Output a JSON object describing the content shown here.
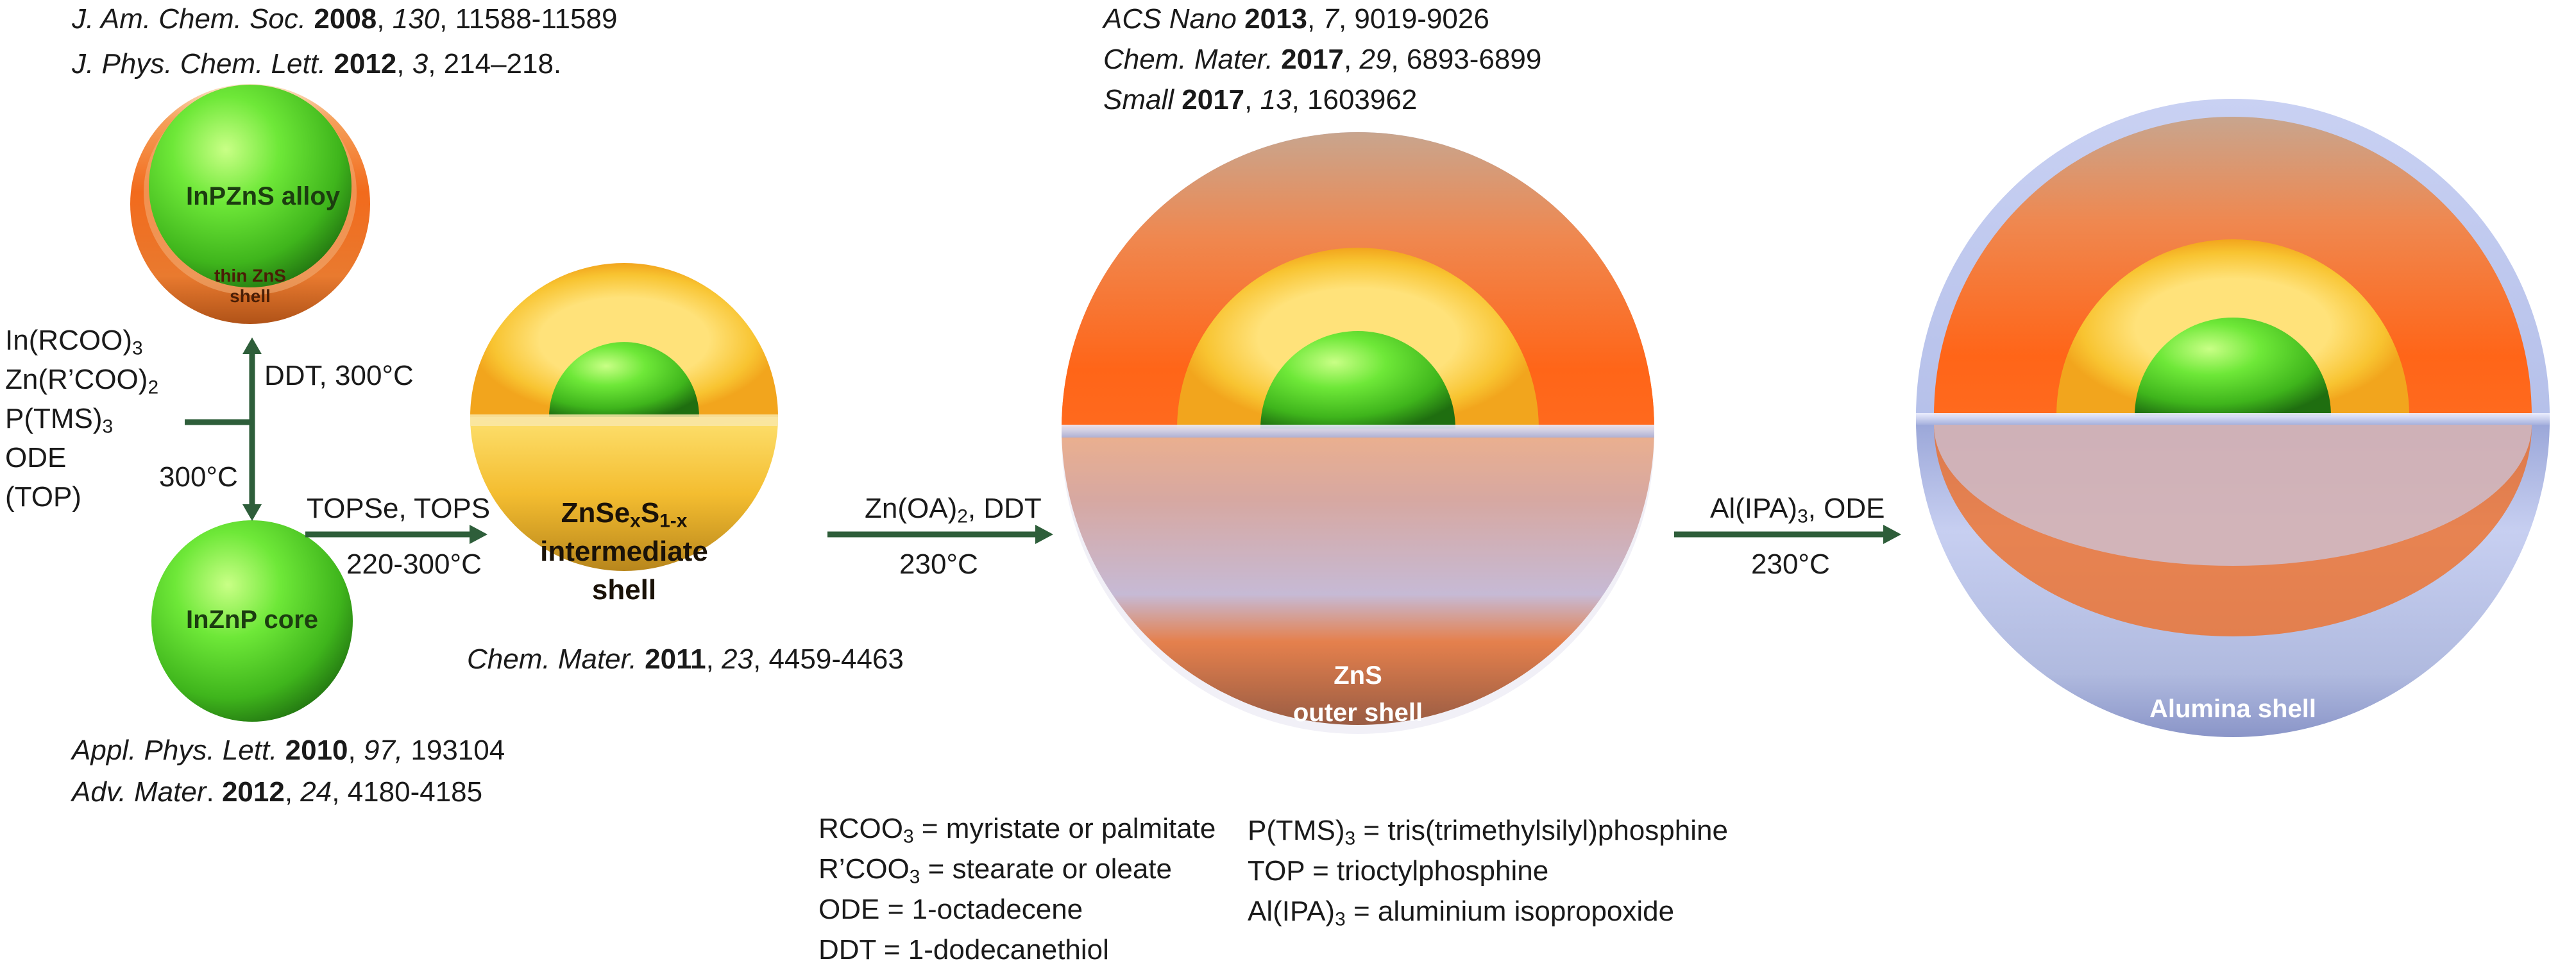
{
  "references": {
    "top_left": [
      {
        "journal": "J. Am. Chem. Soc.",
        "year": "2008",
        "volume": "130",
        "pages": "11588-11589"
      },
      {
        "journal": "J. Phys. Chem. Lett.",
        "year": "2012",
        "volume": "3",
        "pages": "214–218."
      }
    ],
    "bottom_left": [
      {
        "journal": "Appl. Phys. Lett.",
        "year": "2010",
        "volume": "97,",
        "pages": "193104"
      },
      {
        "journal": "Adv. Mater",
        "year": "2012",
        "volume": "24",
        "pages": "4180-4185"
      }
    ],
    "middle": {
      "journal": "Chem. Mater.",
      "year": "2011",
      "volume": "23",
      "pages": "4459-4463"
    },
    "top_right": [
      {
        "journal": "ACS Nano",
        "year": "2013",
        "volume": "7",
        "pages": "9019-9026"
      },
      {
        "journal": "Chem. Mater.",
        "year": "2017",
        "volume": "29",
        "pages": "6893-6899"
      },
      {
        "journal": "Small",
        "year": "2017",
        "volume": "13",
        "pages": "1603962"
      }
    ]
  },
  "particles": {
    "alloy": {
      "label": "InPZnS alloy",
      "shell_line1": "thin ZnS",
      "shell_line2": "shell"
    },
    "core": {
      "label": "InZnP core"
    },
    "intermediate": {
      "main": "ZnSe",
      "sub_x": "x",
      "mid": "S",
      "sub_1x": "1-x",
      "line2": "intermediate",
      "line3": "shell"
    },
    "outer": {
      "line1": "ZnS",
      "line2": "outer shell"
    },
    "alumina": {
      "label": "Alumina shell"
    }
  },
  "precursors": [
    {
      "base": "In(RCOO)",
      "sub": "3"
    },
    {
      "base": "Zn(R’COO)",
      "sub": "2"
    },
    {
      "base": "P(TMS)",
      "sub": "3"
    },
    {
      "base": "ODE",
      "sub": ""
    },
    {
      "base": "(TOP)",
      "sub": ""
    }
  ],
  "steps": {
    "up_label": "DDT, 300°C",
    "down_label": "300°C",
    "step1_top": "TOPSe, TOPS",
    "step1_bottom": "220-300°C",
    "step2_top": "Zn(OA)",
    "step2_top_sub": "2",
    "step2_top_rest": ", DDT",
    "step2_bottom": "230°C",
    "step3_top": "Al(IPA)",
    "step3_top_sub": "3",
    "step3_top_rest": ", ODE",
    "step3_bottom": "230°C"
  },
  "legend_left": [
    {
      "pre": "RCOO",
      "sub": "3",
      "post": " = myristate or palmitate"
    },
    {
      "pre": "R’COO",
      "sub": "3",
      "post": " = stearate or oleate"
    },
    {
      "pre": "ODE =  1-octadecene",
      "sub": "",
      "post": ""
    },
    {
      "pre": "DDT = 1-dodecanethiol",
      "sub": "",
      "post": ""
    }
  ],
  "legend_right": [
    {
      "pre": "P(TMS)",
      "sub": "3",
      "post": " = tris(trimethylsilyl)phosphine"
    },
    {
      "pre": "TOP = trioctylphosphine",
      "sub": "",
      "post": ""
    },
    {
      "pre": "Al(IPA)",
      "sub": "3",
      "post": " = aluminium isopropoxide"
    }
  ],
  "colors": {
    "arrow": "#2e5e3a",
    "core_green": "#55d92a",
    "zns_orange": "#f26a1c",
    "intermediate_yellow": "#f7c430",
    "alumina_blue": "#b9c3ea"
  }
}
